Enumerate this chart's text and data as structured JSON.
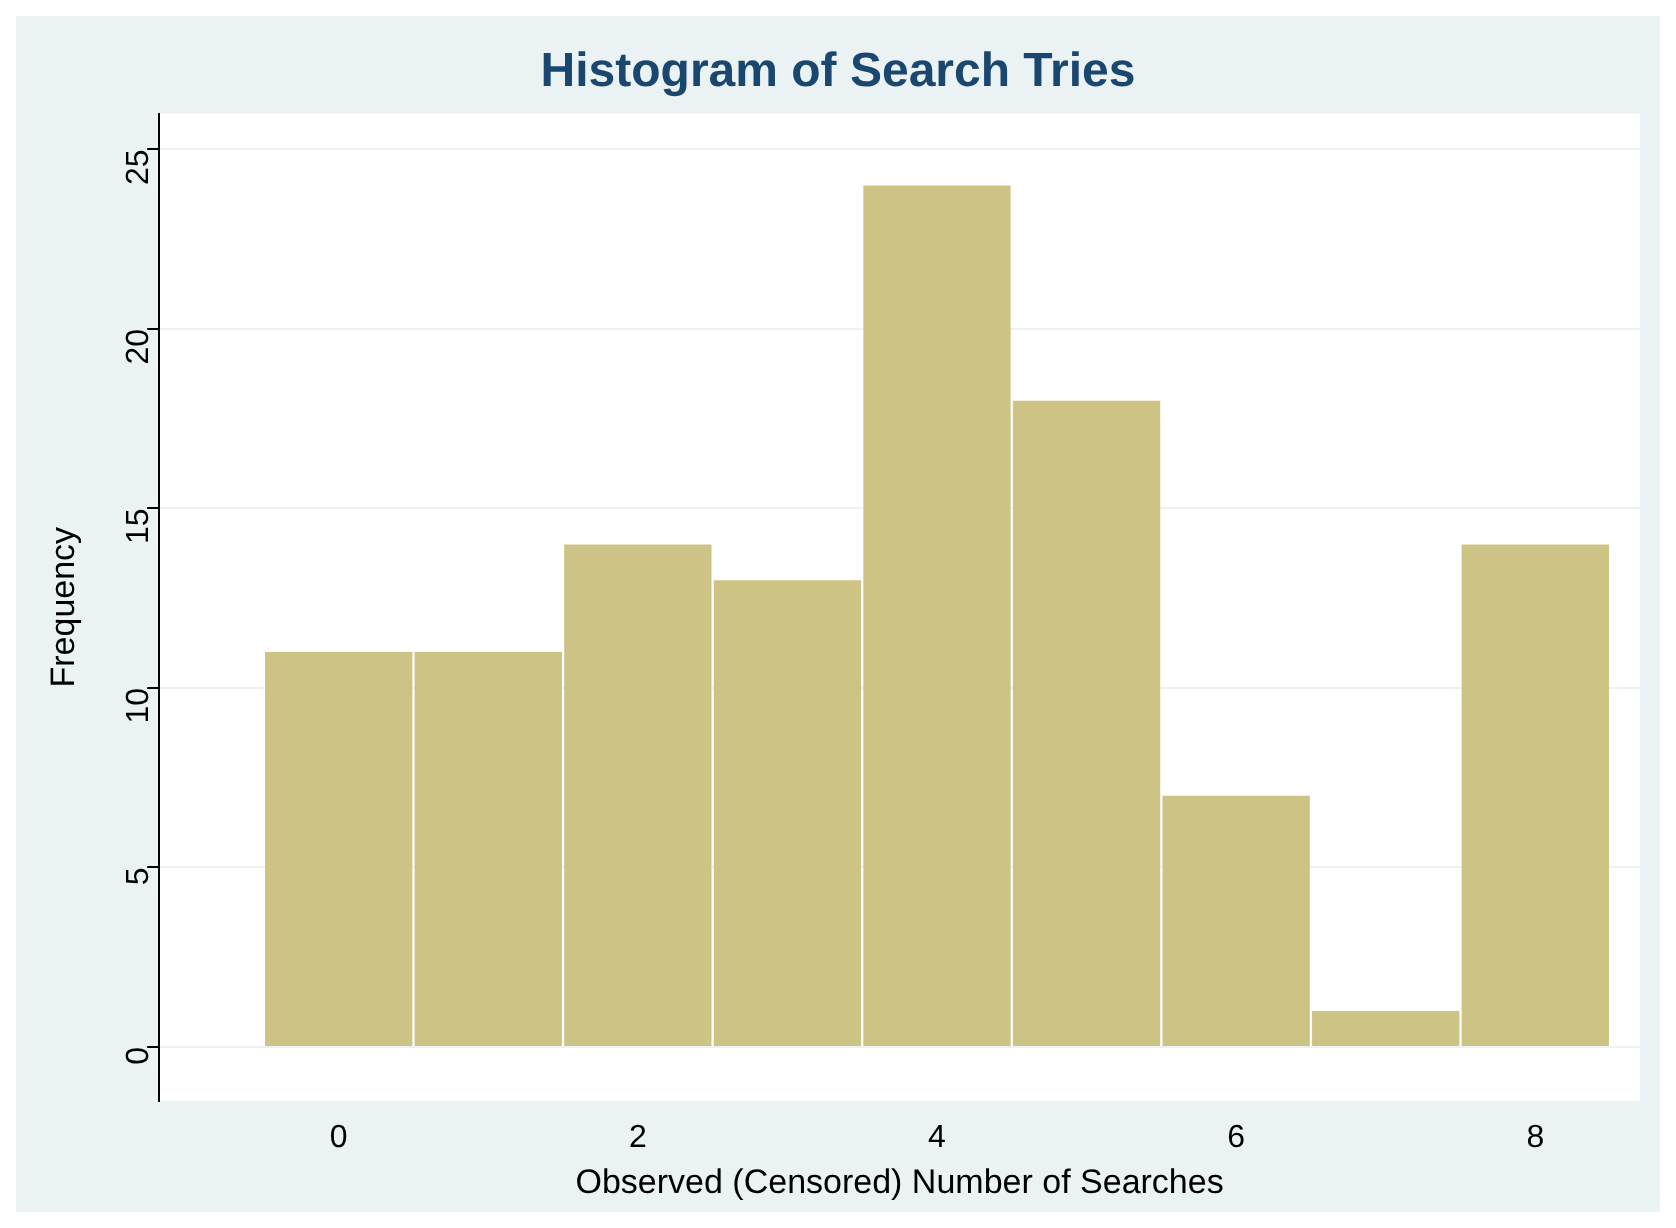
{
  "chart_data": {
    "type": "histogram",
    "title": "Histogram of Search Tries",
    "xlabel": "Observed (Censored) Number of Searches",
    "ylabel": "Frequency",
    "bins": [
      -0.5,
      0.5,
      1.5,
      2.5,
      3.5,
      4.5,
      5.5,
      6.5,
      7.5,
      8.5
    ],
    "values": [
      11,
      11,
      14,
      13,
      24,
      18,
      7,
      1,
      14
    ],
    "color": "#cdc385",
    "xlim": [
      -1.2,
      8.7
    ],
    "xticks": [
      0,
      2,
      4,
      6,
      8
    ],
    "ylim": [
      -1.5,
      26
    ],
    "yticks": [
      0,
      5,
      10,
      15,
      20,
      25
    ],
    "grid": "y",
    "legend": false
  }
}
